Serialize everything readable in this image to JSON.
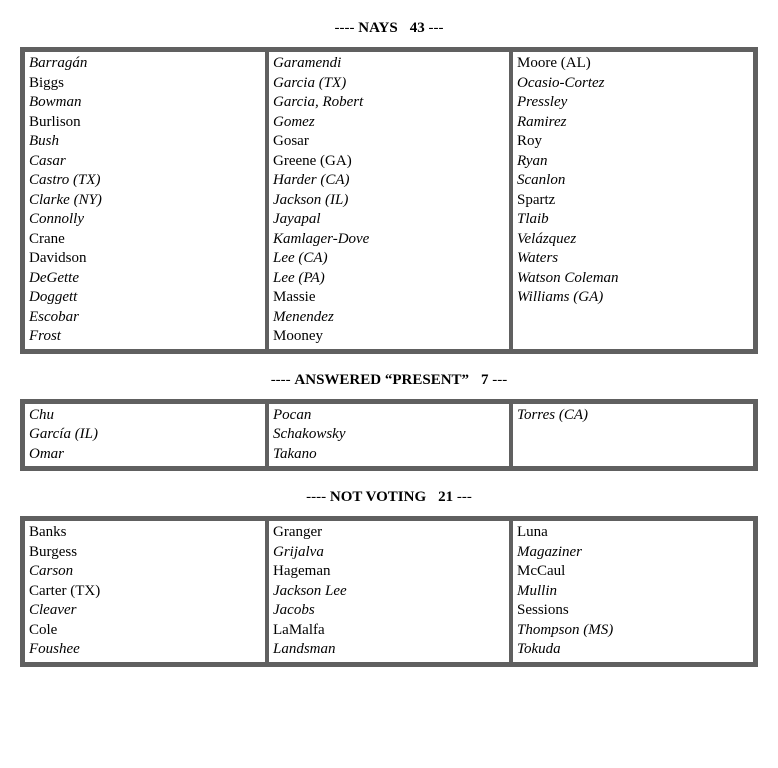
{
  "sections": [
    {
      "id": "nays",
      "dashes_pre": "----",
      "label": "NAYS",
      "count": "43",
      "dashes_post": "---",
      "columns": [
        [
          {
            "text": "Barragán",
            "italic": true
          },
          {
            "text": "Biggs",
            "italic": false
          },
          {
            "text": "Bowman",
            "italic": true
          },
          {
            "text": "Burlison",
            "italic": false
          },
          {
            "text": "Bush",
            "italic": true
          },
          {
            "text": "Casar",
            "italic": true
          },
          {
            "text": "Castro (TX)",
            "italic": true
          },
          {
            "text": "Clarke (NY)",
            "italic": true
          },
          {
            "text": "Connolly",
            "italic": true
          },
          {
            "text": "Crane",
            "italic": false
          },
          {
            "text": "Davidson",
            "italic": false
          },
          {
            "text": "DeGette",
            "italic": true
          },
          {
            "text": "Doggett",
            "italic": true
          },
          {
            "text": "Escobar",
            "italic": true
          },
          {
            "text": "Frost",
            "italic": true
          }
        ],
        [
          {
            "text": "Garamendi",
            "italic": true
          },
          {
            "text": "Garcia (TX)",
            "italic": true
          },
          {
            "text": "Garcia, Robert",
            "italic": true
          },
          {
            "text": "Gomez",
            "italic": true
          },
          {
            "text": "Gosar",
            "italic": false
          },
          {
            "text": "Greene (GA)",
            "italic": false
          },
          {
            "text": "Harder (CA)",
            "italic": true
          },
          {
            "text": "Jackson (IL)",
            "italic": true
          },
          {
            "text": "Jayapal",
            "italic": true
          },
          {
            "text": "Kamlager-Dove",
            "italic": true
          },
          {
            "text": "Lee (CA)",
            "italic": true
          },
          {
            "text": "Lee (PA)",
            "italic": true
          },
          {
            "text": "Massie",
            "italic": false
          },
          {
            "text": "Menendez",
            "italic": true
          },
          {
            "text": "Mooney",
            "italic": false
          }
        ],
        [
          {
            "text": "Moore (AL)",
            "italic": false
          },
          {
            "text": "Ocasio-Cortez",
            "italic": true
          },
          {
            "text": "Pressley",
            "italic": true
          },
          {
            "text": "Ramirez",
            "italic": true
          },
          {
            "text": "Roy",
            "italic": false
          },
          {
            "text": "Ryan",
            "italic": true
          },
          {
            "text": "Scanlon",
            "italic": true
          },
          {
            "text": "Spartz",
            "italic": false
          },
          {
            "text": "Tlaib",
            "italic": true
          },
          {
            "text": "Velázquez",
            "italic": true
          },
          {
            "text": "Waters",
            "italic": true
          },
          {
            "text": "Watson Coleman",
            "italic": true
          },
          {
            "text": "Williams (GA)",
            "italic": true
          }
        ]
      ]
    },
    {
      "id": "present",
      "dashes_pre": "----",
      "label": "ANSWERED “PRESENT”",
      "count": "7",
      "dashes_post": "---",
      "columns": [
        [
          {
            "text": "Chu",
            "italic": true
          },
          {
            "text": "García (IL)",
            "italic": true
          },
          {
            "text": "Omar",
            "italic": true
          }
        ],
        [
          {
            "text": "Pocan",
            "italic": true
          },
          {
            "text": "Schakowsky",
            "italic": true
          },
          {
            "text": "Takano",
            "italic": true
          }
        ],
        [
          {
            "text": "Torres (CA)",
            "italic": true
          }
        ]
      ]
    },
    {
      "id": "notvoting",
      "dashes_pre": "----",
      "label": "NOT VOTING",
      "count": "21",
      "dashes_post": "---",
      "columns": [
        [
          {
            "text": "Banks",
            "italic": false
          },
          {
            "text": "Burgess",
            "italic": false
          },
          {
            "text": "Carson",
            "italic": true
          },
          {
            "text": "Carter (TX)",
            "italic": false
          },
          {
            "text": "Cleaver",
            "italic": true
          },
          {
            "text": "Cole",
            "italic": false
          },
          {
            "text": "Foushee",
            "italic": true
          }
        ],
        [
          {
            "text": "Granger",
            "italic": false
          },
          {
            "text": "Grijalva",
            "italic": true
          },
          {
            "text": "Hageman",
            "italic": false
          },
          {
            "text": "Jackson Lee",
            "italic": true
          },
          {
            "text": "Jacobs",
            "italic": true
          },
          {
            "text": "LaMalfa",
            "italic": false
          },
          {
            "text": "Landsman",
            "italic": true
          }
        ],
        [
          {
            "text": "Luna",
            "italic": false
          },
          {
            "text": "Magaziner",
            "italic": true
          },
          {
            "text": "McCaul",
            "italic": false
          },
          {
            "text": "Mullin",
            "italic": true
          },
          {
            "text": "Sessions",
            "italic": false
          },
          {
            "text": "Thompson (MS)",
            "italic": true
          },
          {
            "text": "Tokuda",
            "italic": true
          }
        ]
      ]
    }
  ]
}
